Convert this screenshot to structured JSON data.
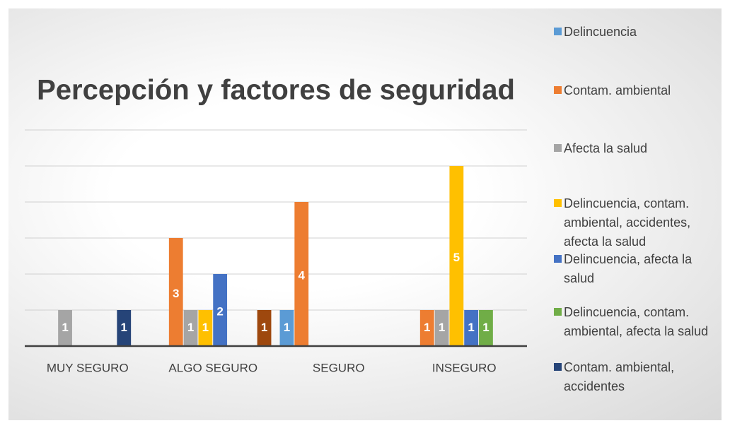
{
  "chart_data": {
    "type": "bar",
    "title": "Percepción y factores de seguridad",
    "categories": [
      "MUY SEGURO",
      "ALGO SEGURO",
      "SEGURO",
      "INSEGURO"
    ],
    "series": [
      {
        "name": "Delincuencia",
        "color": "#5b9bd5",
        "values": [
          null,
          null,
          1,
          null
        ]
      },
      {
        "name": "Contam. ambiental",
        "color": "#ed7d31",
        "values": [
          null,
          3,
          4,
          1
        ]
      },
      {
        "name": "Afecta la salud",
        "color": "#a5a5a5",
        "values": [
          1,
          1,
          null,
          1
        ]
      },
      {
        "name": "Delincuencia, contam. ambiental, accidentes, afecta la salud",
        "color": "#ffc000",
        "values": [
          null,
          1,
          null,
          5
        ]
      },
      {
        "name": "Delincuencia, afecta la salud",
        "color": "#4472c4",
        "values": [
          null,
          2,
          null,
          1
        ]
      },
      {
        "name": "Delincuencia, contam. ambiental, afecta la salud",
        "color": "#70ad47",
        "values": [
          null,
          null,
          null,
          1
        ]
      },
      {
        "name": "Contam. ambiental, accidentes",
        "color": "#264478",
        "values": [
          1,
          null,
          null,
          null
        ]
      },
      {
        "color": "#9e480e",
        "values": [
          null,
          1,
          null,
          null
        ]
      }
    ],
    "ylim": [
      0,
      6
    ],
    "yticks": [
      0,
      1,
      2,
      3,
      4,
      5,
      6
    ],
    "grid": true,
    "legend": "right"
  }
}
